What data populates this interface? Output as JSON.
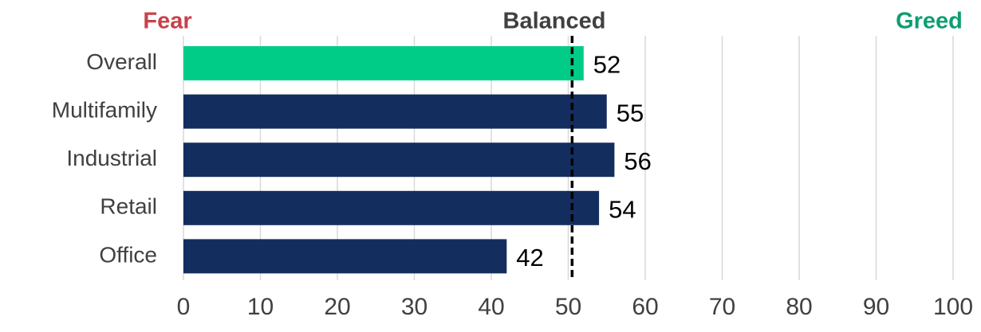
{
  "chart_data": {
    "type": "bar",
    "orientation": "horizontal",
    "categories": [
      "Overall",
      "Multifamily",
      "Industrial",
      "Retail",
      "Office"
    ],
    "values": [
      52,
      55,
      56,
      54,
      42
    ],
    "colors": [
      "#00cc88",
      "#132e5e",
      "#132e5e",
      "#132e5e",
      "#132e5e"
    ],
    "xlim": [
      0,
      100
    ],
    "xticks": [
      0,
      10,
      20,
      30,
      40,
      50,
      60,
      70,
      80,
      90,
      100
    ],
    "grid": true,
    "reference_line": {
      "value": 50.5,
      "style": "dashed",
      "color": "#000000"
    },
    "annotations": [
      {
        "text": "Fear",
        "color": "#c8414a"
      },
      {
        "text": "Balanced",
        "color": "#404040"
      },
      {
        "text": "Greed",
        "color": "#0e9e73"
      }
    ]
  }
}
